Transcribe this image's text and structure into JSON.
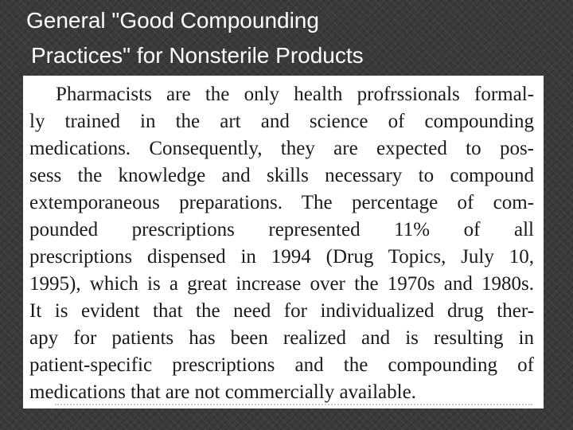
{
  "slide": {
    "title_line1": "General \"Good Compounding",
    "title_line2": "Practices\" for Nonsterile Products"
  },
  "excerpt": {
    "lines": [
      "Pharmacists are the only health profrssionals formal-",
      "ly trained in the art and science of compounding",
      "medications. Consequently, they are expected to pos-",
      "sess the knowledge and skills necessary to compound",
      "extemporaneous preparations. The percentage of com-",
      "pounded prescriptions represented 11% of all",
      "prescriptions dispensed in 1994 (Drug Topics, July 10,",
      "1995), which is a great increase over the 1970s and 1980s.",
      "It is evident that the need for individualized drug ther-",
      "apy for patients has been realized and is resulting in",
      "patient-specific prescriptions and the compounding of",
      "medications that are not commercially available."
    ]
  }
}
